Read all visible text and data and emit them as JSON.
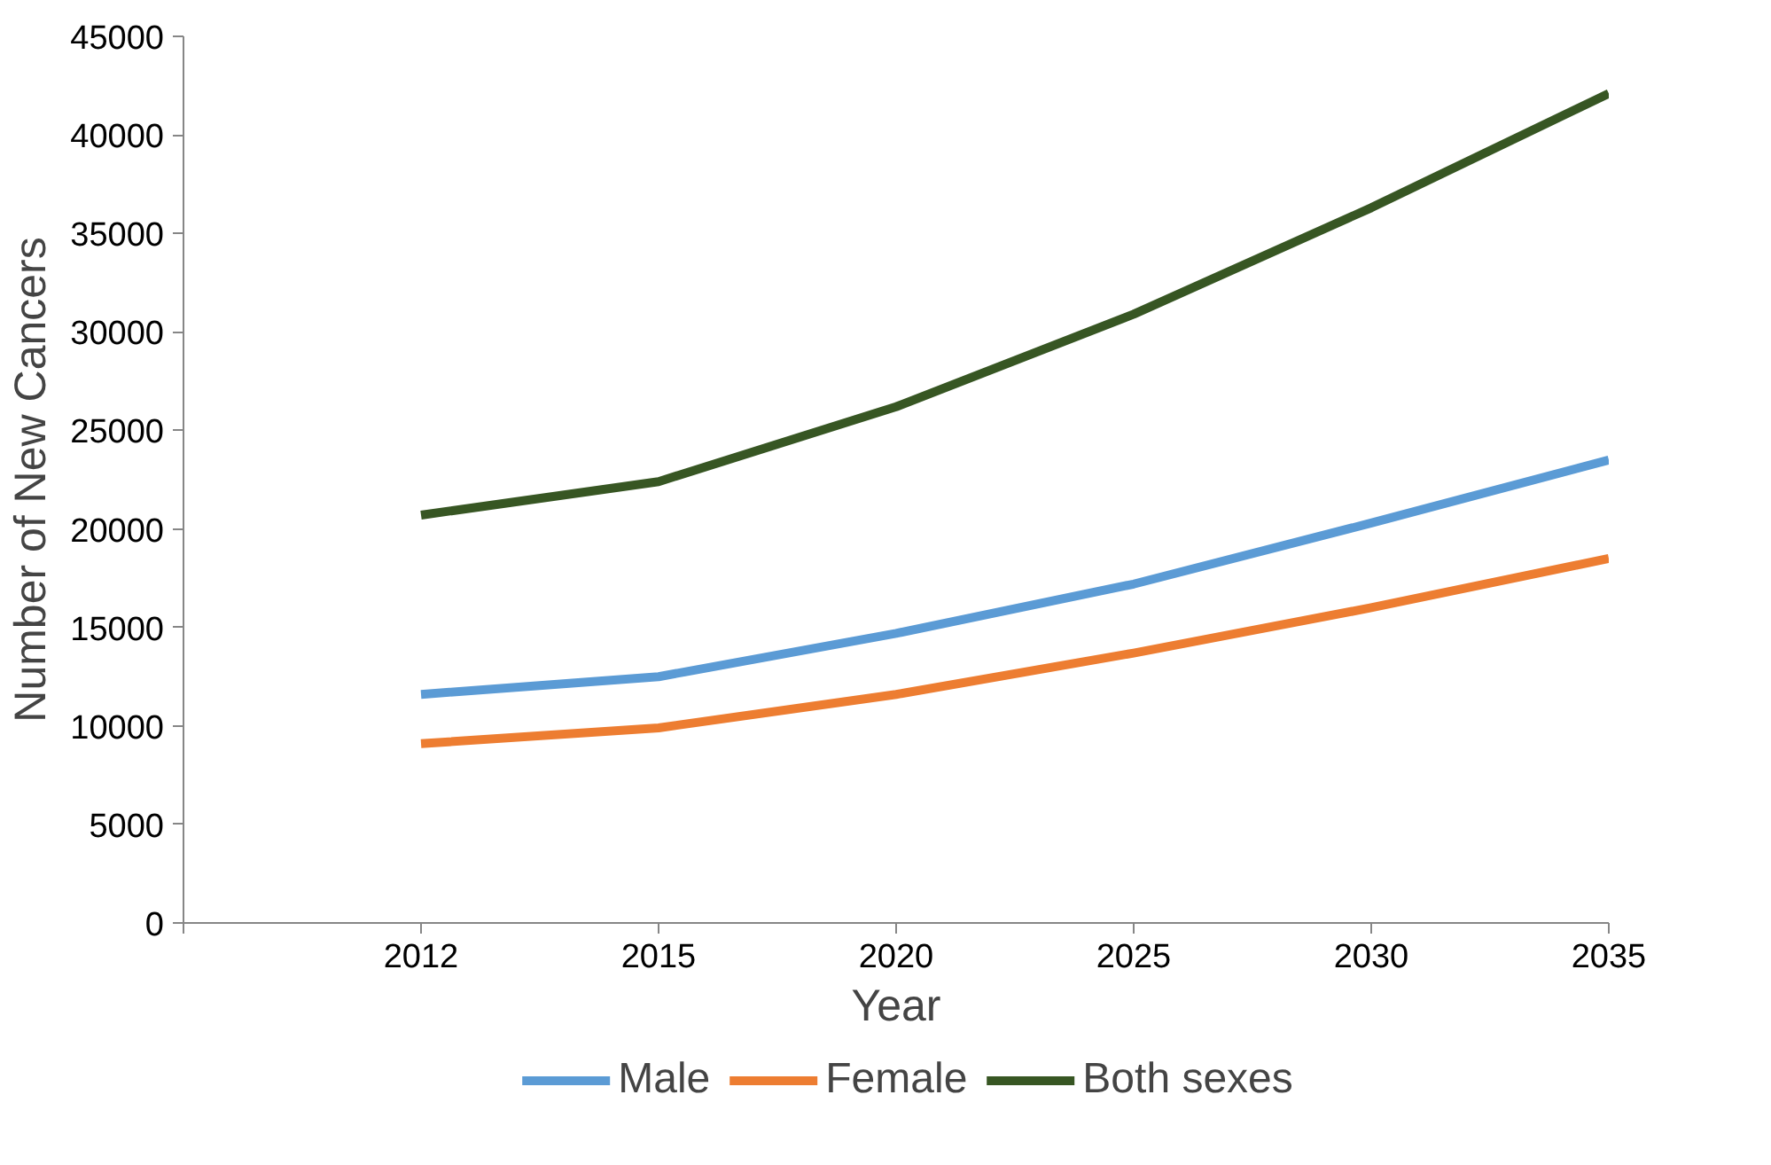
{
  "chart_data": {
    "type": "line",
    "xlabel": "Year",
    "ylabel": "Number of New Cancers",
    "categories": [
      null,
      "2012",
      "2015",
      "2020",
      "2025",
      "2030",
      "2035"
    ],
    "series": [
      {
        "name": "Male",
        "color": "#5b9bd5",
        "values": [
          null,
          11600,
          12500,
          14700,
          17200,
          20300,
          23500
        ]
      },
      {
        "name": "Female",
        "color": "#ed7d31",
        "values": [
          null,
          9100,
          9900,
          11600,
          13700,
          16000,
          18500
        ]
      },
      {
        "name": "Both sexes",
        "color": "#375623",
        "values": [
          null,
          20700,
          22400,
          26200,
          30900,
          36300,
          42100
        ]
      }
    ],
    "ylim": [
      0,
      45000
    ],
    "yticks": [
      0,
      5000,
      10000,
      15000,
      20000,
      25000,
      30000,
      35000,
      40000,
      45000
    ],
    "grid": false,
    "legend": "bottom",
    "marker": "none",
    "line_style": "solid"
  }
}
